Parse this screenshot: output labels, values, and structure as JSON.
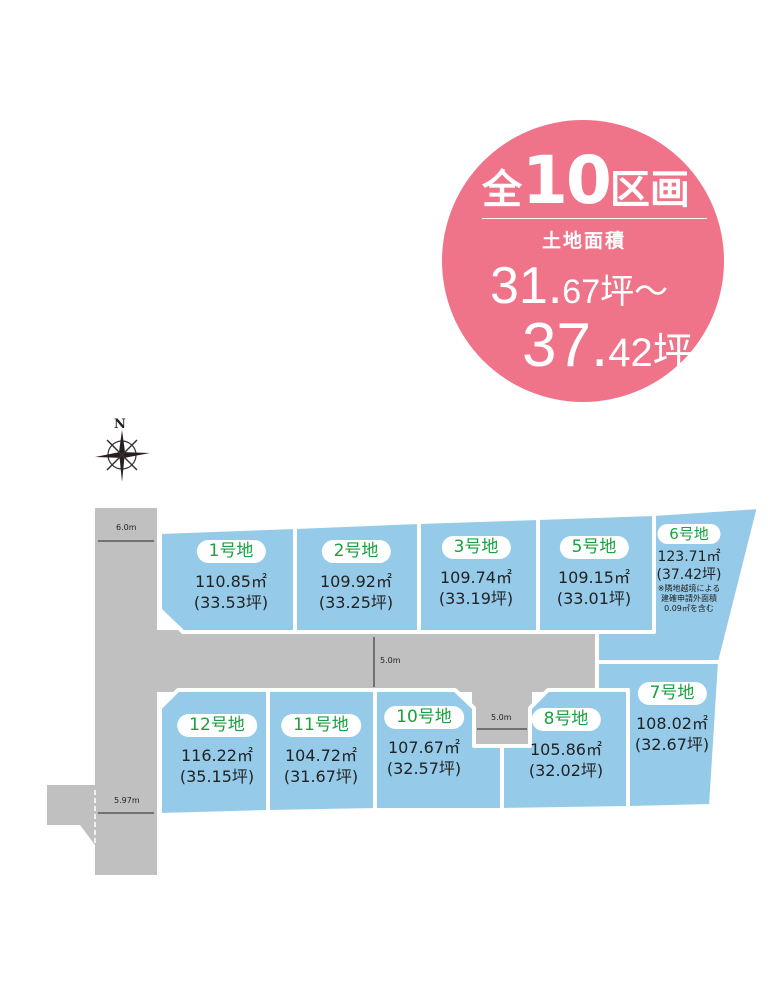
{
  "summary": {
    "prefix": "全",
    "count": "10",
    "suffix": "区画",
    "subtitle": "土地面積",
    "min_int": "31.",
    "min_dec": "67坪～",
    "max_int": "37.",
    "max_dec": "42坪"
  },
  "compass": {
    "label": "N"
  },
  "dimensions": {
    "road_top": "6.0m",
    "road_bottom": "5.97m",
    "road_middle": "5.0m",
    "notch": "5.0m"
  },
  "lots": [
    {
      "label": "1号地",
      "area": "110.85㎡",
      "tsubo": "(33.53坪)"
    },
    {
      "label": "2号地",
      "area": "109.92㎡",
      "tsubo": "(33.25坪)"
    },
    {
      "label": "3号地",
      "area": "109.74㎡",
      "tsubo": "(33.19坪)"
    },
    {
      "label": "5号地",
      "area": "109.15㎡",
      "tsubo": "(33.01坪)"
    },
    {
      "label": "6号地",
      "area": "123.71㎡",
      "tsubo": "(37.42坪)",
      "note1": "※隣地越境による",
      "note2": "建確申請外面積",
      "note3": "0.09㎡を含む"
    },
    {
      "label": "7号地",
      "area": "108.02㎡",
      "tsubo": "(32.67坪)"
    },
    {
      "label": "8号地",
      "area": "105.86㎡",
      "tsubo": "(32.02坪)"
    },
    {
      "label": "10号地",
      "area": "107.67㎡",
      "tsubo": "(32.57坪)"
    },
    {
      "label": "11号地",
      "area": "104.72㎡",
      "tsubo": "(31.67坪)"
    },
    {
      "label": "12号地",
      "area": "116.22㎡",
      "tsubo": "(35.15坪)"
    }
  ],
  "colors": {
    "lot": "#95cbe9",
    "road": "#c0c0c0",
    "badge": "#f07489",
    "label": "#1aa040"
  }
}
